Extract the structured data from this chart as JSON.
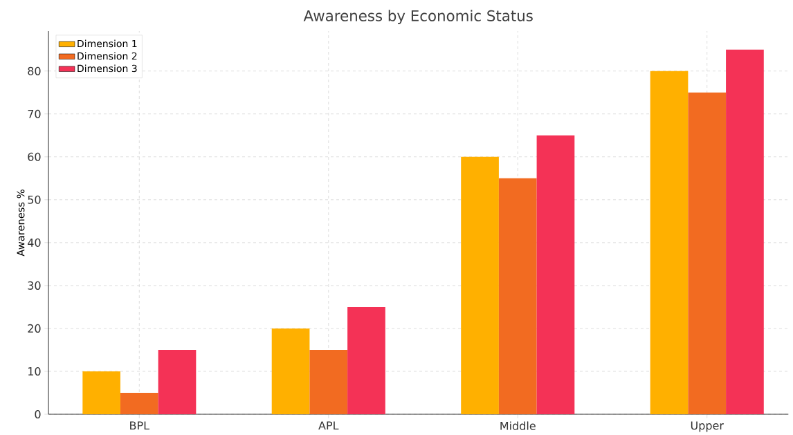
{
  "chart_data": {
    "type": "bar",
    "title": "Awareness by Economic Status",
    "ylabel": "Awareness %",
    "categories": [
      "BPL",
      "APL",
      "Middle",
      "Upper"
    ],
    "series": [
      {
        "name": "Dimension 1",
        "color": "#ffb000",
        "values": [
          10,
          20,
          60,
          80
        ]
      },
      {
        "name": "Dimension 2",
        "color": "#f26b21",
        "values": [
          5,
          15,
          55,
          75
        ]
      },
      {
        "name": "Dimension 3",
        "color": "#f43256",
        "values": [
          15,
          25,
          65,
          85
        ]
      }
    ],
    "ylim": [
      0,
      89.3
    ],
    "yticks": [
      0,
      10,
      20,
      30,
      40,
      50,
      60,
      70,
      80
    ],
    "grid": true,
    "legend": "top left"
  }
}
